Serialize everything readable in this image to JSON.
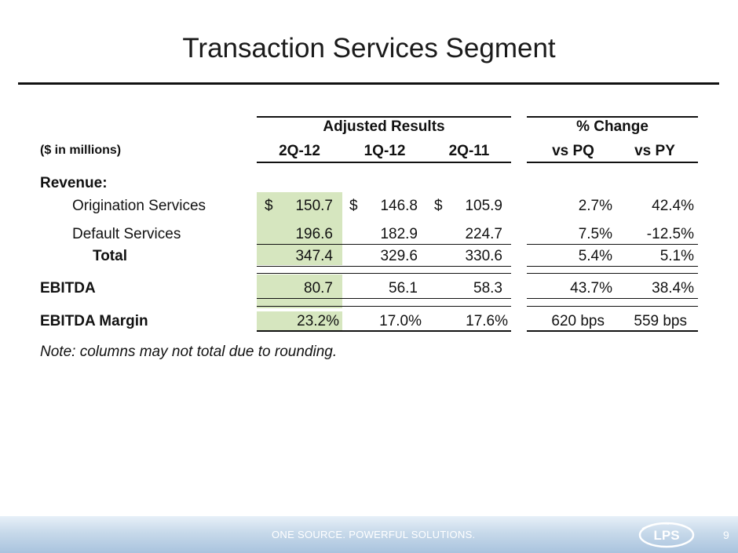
{
  "title": "Transaction Services Segment",
  "header": {
    "group_adjusted": "Adjusted Results",
    "group_change": "% Change",
    "units": "($ in millions)",
    "cols": [
      "2Q-12",
      "1Q-12",
      "2Q-11"
    ],
    "change_cols": [
      "vs PQ",
      "vs PY"
    ]
  },
  "revenue_label": "Revenue:",
  "rows": {
    "origination": {
      "label": "Origination Services",
      "cur": "$",
      "values": [
        "150.7",
        "146.8",
        "105.9"
      ],
      "changes": [
        "2.7%",
        "42.4%"
      ]
    },
    "default": {
      "label": "Default Services",
      "values": [
        "196.6",
        "182.9",
        "224.7"
      ],
      "changes": [
        "7.5%",
        "-12.5%"
      ]
    },
    "total": {
      "label": "Total",
      "values": [
        "347.4",
        "329.6",
        "330.6"
      ],
      "changes": [
        "5.4%",
        "5.1%"
      ]
    },
    "ebitda": {
      "label": "EBITDA",
      "values": [
        "80.7",
        "56.1",
        "58.3"
      ],
      "changes": [
        "43.7%",
        "38.4%"
      ]
    },
    "margin": {
      "label": "EBITDA Margin",
      "values": [
        "23.2%",
        "17.0%",
        "17.6%"
      ],
      "changes": [
        "620 bps",
        "559 bps"
      ]
    }
  },
  "note": "Note: columns may not total due to rounding.",
  "footer": {
    "tagline": "ONE SOURCE. POWERFUL SOLUTIONS.",
    "logo_text": "LPS",
    "page_number": "9"
  },
  "colors": {
    "highlight": "#d6e6bf",
    "footer_blue": "#a9c3de"
  }
}
